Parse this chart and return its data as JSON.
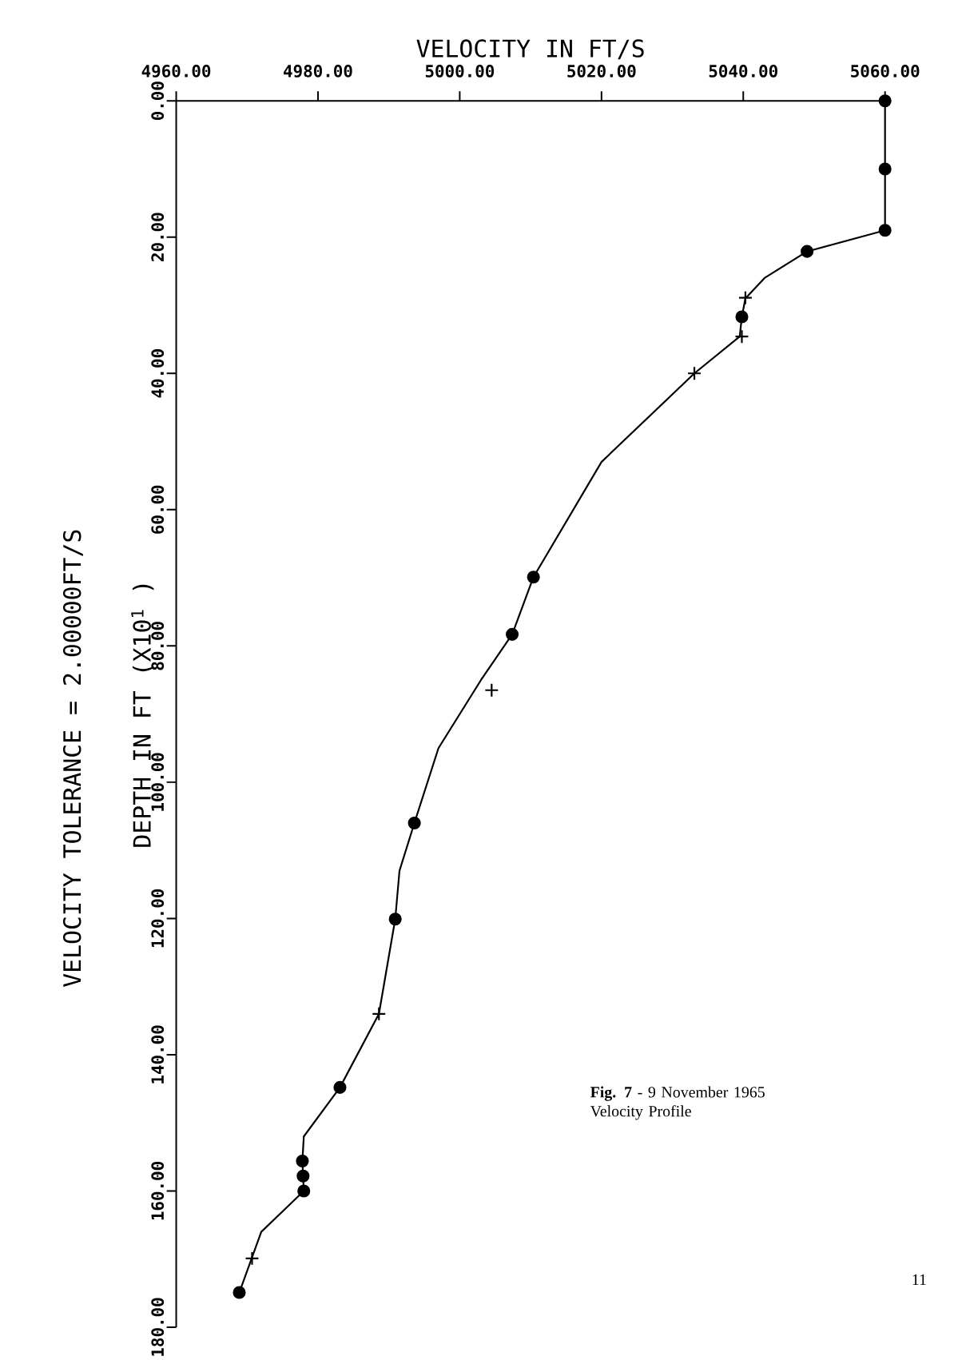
{
  "chart_data": {
    "type": "line",
    "xlabel": "VELOCITY IN FT/S",
    "ylabel": "DEPTH IN FT    (X10$^{1}$ )",
    "annotations": [
      "VELOCITY TOLERANCE =  2.00000FT/S",
      "**Fig. 7** - 9 November 1965 Velocity Profile",
      "11"
    ],
    "xlim": [
      4960,
      5060
    ],
    "xticks": [
      {
        "value": 4960,
        "label": "4960.00"
      },
      {
        "value": 4980,
        "label": "4980.00"
      },
      {
        "value": 5000,
        "label": "5000.00"
      },
      {
        "value": 5020,
        "label": "5020.00"
      },
      {
        "value": 5040,
        "label": "5040.00"
      },
      {
        "value": 5060,
        "label": "5060.00"
      }
    ],
    "ylim": [
      180,
      0
    ],
    "yticks": [
      {
        "value": 0,
        "label": "0.00"
      },
      {
        "value": 20,
        "label": "20.00"
      },
      {
        "value": 40,
        "label": "40.00"
      },
      {
        "value": 60,
        "label": "60.00"
      },
      {
        "value": 80,
        "label": "80.00"
      },
      {
        "value": 100,
        "label": "100.00"
      },
      {
        "value": 120,
        "label": "120.00"
      },
      {
        "value": 140,
        "label": "140.00"
      },
      {
        "value": 160,
        "label": "160.00"
      },
      {
        "value": 180,
        "label": "180.00"
      }
    ],
    "grid": false,
    "series": [
      {
        "color": "#000000",
        "marker": "none",
        "line_style": "solid",
        "x": [
          5060,
          5060,
          5049,
          5043,
          5040.3,
          5039.8,
          5039.5,
          5033.1,
          5020,
          5010.4,
          5007.4,
          5003,
          4997,
          4993.6,
          4991.5,
          4990.9,
          4988.6,
          4983.1,
          4978,
          4977.8,
          4977.9,
          4978,
          4972,
          4968.9
        ],
        "values": [
          0,
          19,
          22.1,
          26,
          29,
          31.7,
          34.6,
          40,
          53,
          69.9,
          78.3,
          85,
          95,
          106,
          113,
          120.1,
          134,
          144.8,
          152,
          155.6,
          157.8,
          160,
          166,
          174.9
        ]
      },
      {
        "type": "scatter",
        "color": "#000000",
        "marker": "circle",
        "x": [
          5060,
          5060,
          5060,
          5049,
          5039.8,
          5010.4,
          5007.4,
          4993.6,
          4990.9,
          4983.1,
          4977.8,
          4977.9,
          4978,
          4968.9
        ],
        "values": [
          0,
          10,
          19,
          22.1,
          31.7,
          69.9,
          78.3,
          106,
          120.1,
          144.8,
          155.6,
          157.8,
          160,
          174.9
        ]
      },
      {
        "type": "scatter",
        "color": "#000000",
        "marker": "cross",
        "x": [
          5040.3,
          5039.8,
          5033.1,
          5004.5,
          4988.6,
          4970.7
        ],
        "values": [
          28.9,
          34.6,
          40,
          86.5,
          134,
          169.9
        ]
      }
    ]
  }
}
